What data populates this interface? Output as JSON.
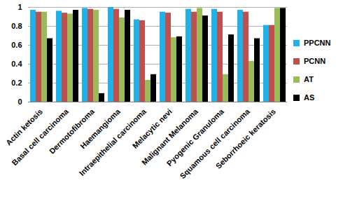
{
  "chart_data": {
    "type": "bar",
    "categories": [
      "Actin ketosis",
      "Basal cell carcinoma",
      "Dermotofibroma",
      "Haemangioma",
      "Intraepithelial carcinoma",
      "Melacytic nevi",
      "Malignant Melanoma",
      "Pyogenic Granuloma",
      "Squamous cell carcinoma",
      "Seborrhoeic keratosis"
    ],
    "series": [
      {
        "name": "PPCNN",
        "color": "#1fb1e8",
        "values": [
          0.97,
          0.96,
          0.99,
          1.0,
          0.87,
          0.95,
          0.98,
          0.98,
          0.97,
          0.81
        ]
      },
      {
        "name": "PCNN",
        "color": "#c0504d",
        "values": [
          0.95,
          0.94,
          0.98,
          0.98,
          0.86,
          0.94,
          0.95,
          0.95,
          0.95,
          0.81
        ]
      },
      {
        "name": "AT",
        "color": "#9bbb59",
        "values": [
          0.95,
          0.93,
          0.97,
          0.89,
          0.23,
          0.68,
          0.99,
          0.29,
          0.43,
          0.99
        ]
      },
      {
        "name": "AS",
        "color": "#000000",
        "values": [
          0.67,
          0.97,
          0.09,
          0.97,
          0.29,
          0.69,
          0.91,
          0.71,
          0.67,
          0.99
        ]
      }
    ],
    "ylim": [
      0,
      1
    ],
    "yticks": [
      0,
      0.2,
      0.4,
      0.6,
      0.8,
      1
    ],
    "grid": true,
    "legend": "right"
  }
}
